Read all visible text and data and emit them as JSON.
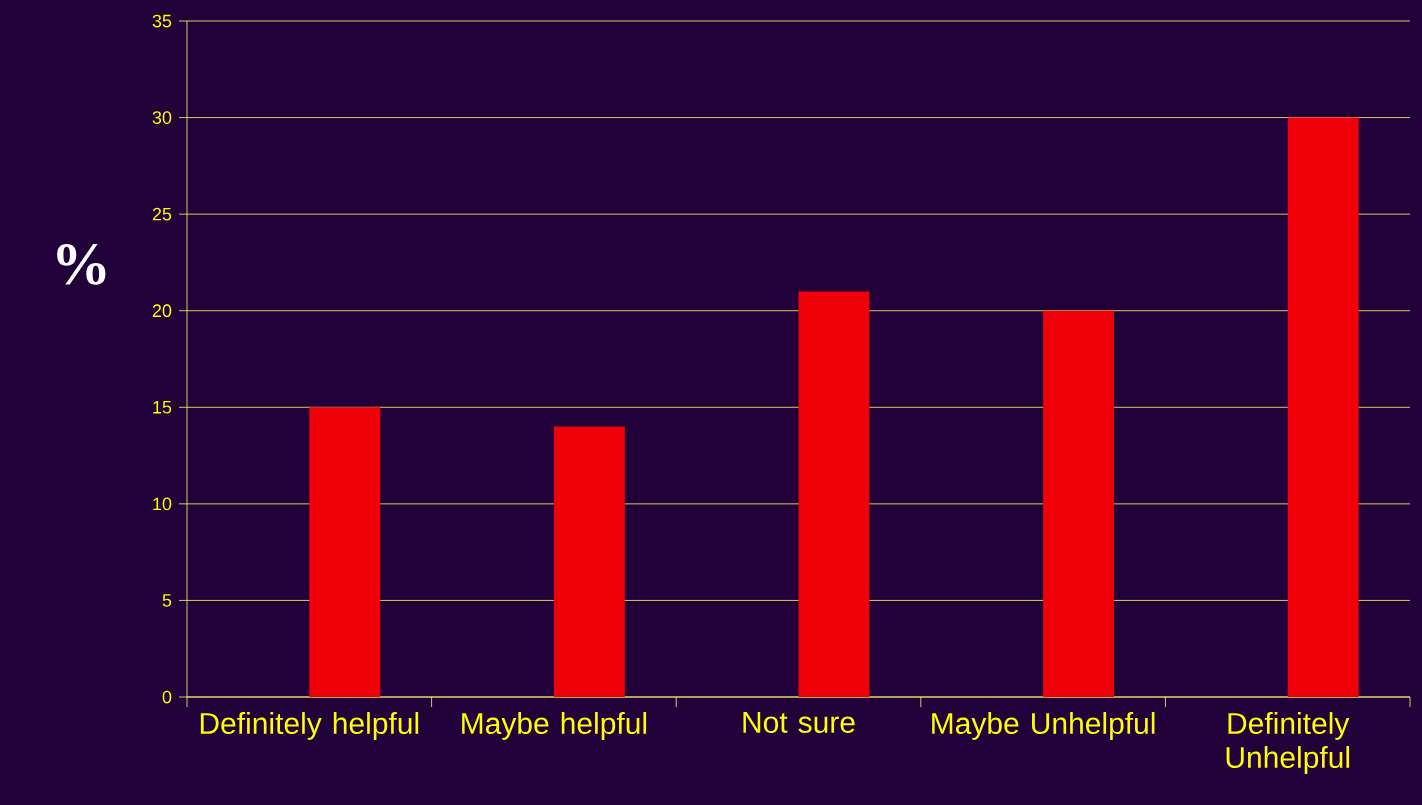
{
  "chart_data": {
    "type": "bar",
    "ylabel": "%",
    "categories": [
      "Definitely helpful",
      "Maybe helpful",
      "Not sure",
      "Maybe Unhelpful",
      "Definitely Unhelpful"
    ],
    "values": [
      15,
      14,
      21,
      20,
      30
    ],
    "color": "#f00008",
    "ylim": [
      0,
      35
    ],
    "yticks": [
      0,
      5,
      10,
      15,
      20,
      25,
      30,
      35
    ],
    "grid": "y"
  }
}
